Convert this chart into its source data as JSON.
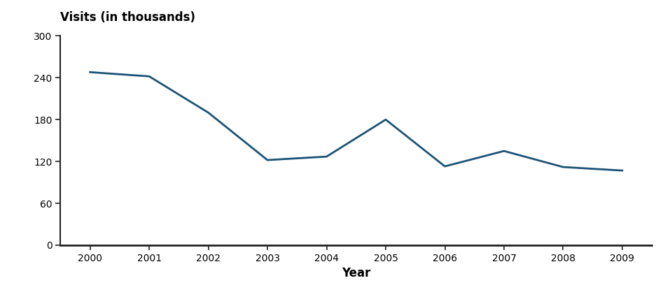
{
  "years": [
    2000,
    2001,
    2002,
    2003,
    2004,
    2005,
    2006,
    2007,
    2008,
    2009
  ],
  "values": [
    248,
    242,
    190,
    122,
    127,
    180,
    113,
    135,
    112,
    107
  ],
  "line_color": "#1a5276",
  "line_width": 2.0,
  "ylabel": "Visits (in thousands)",
  "xlabel": "Year",
  "ylim": [
    0,
    300
  ],
  "yticks": [
    0,
    60,
    120,
    180,
    240,
    300
  ],
  "xticks": [
    2000,
    2001,
    2002,
    2003,
    2004,
    2005,
    2006,
    2007,
    2008,
    2009
  ],
  "background_color": "#ffffff",
  "ylabel_fontsize": 12,
  "xlabel_fontsize": 12,
  "tick_fontsize": 10,
  "xlabel_fontweight": "bold",
  "ylabel_fontweight": "bold"
}
